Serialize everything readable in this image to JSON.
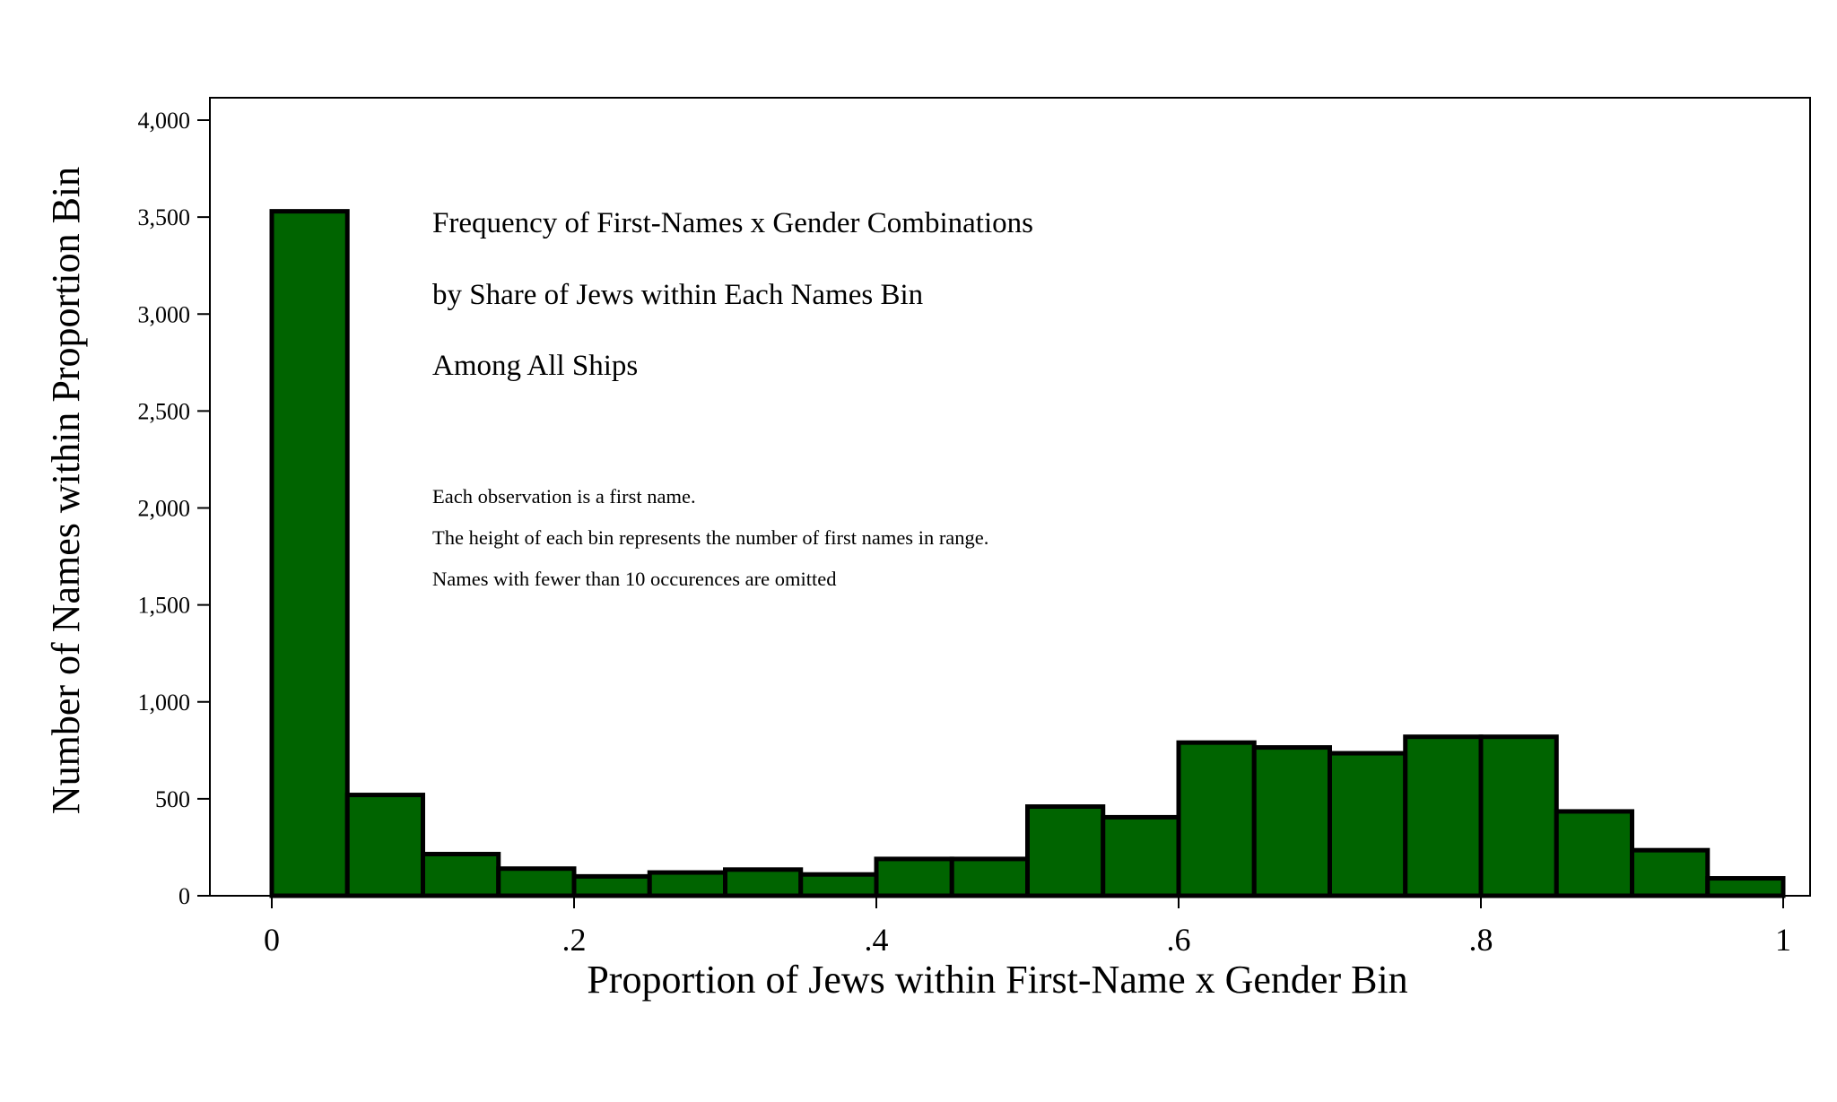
{
  "chart_data": {
    "type": "bar",
    "subtype": "histogram",
    "bin_edges": [
      0,
      0.05,
      0.1,
      0.15,
      0.2,
      0.25,
      0.3,
      0.35,
      0.4,
      0.45,
      0.5,
      0.55,
      0.6,
      0.65,
      0.7,
      0.75,
      0.8,
      0.85,
      0.9,
      0.95,
      1.0
    ],
    "values": [
      3530,
      520,
      215,
      140,
      100,
      120,
      135,
      110,
      190,
      190,
      460,
      405,
      790,
      765,
      735,
      820,
      820,
      435,
      235,
      90
    ],
    "xlabel": "Proportion of Jews within First-Name x Gender Bin",
    "ylabel": "Number of Names within Proportion Bin",
    "xlim": [
      0,
      1
    ],
    "ylim": [
      0,
      4000
    ],
    "x_ticks": [
      {
        "value": 0,
        "label": "0"
      },
      {
        "value": 0.2,
        "label": ".2"
      },
      {
        "value": 0.4,
        "label": ".4"
      },
      {
        "value": 0.6,
        "label": ".6"
      },
      {
        "value": 0.8,
        "label": ".8"
      },
      {
        "value": 1,
        "label": "1"
      }
    ],
    "y_ticks": [
      {
        "value": 0,
        "label": "0"
      },
      {
        "value": 500,
        "label": "500"
      },
      {
        "value": 1000,
        "label": "1,000"
      },
      {
        "value": 1500,
        "label": "1,500"
      },
      {
        "value": 2000,
        "label": "2,000"
      },
      {
        "value": 2500,
        "label": "2,500"
      },
      {
        "value": 3000,
        "label": "3,000"
      },
      {
        "value": 3500,
        "label": "3,500"
      },
      {
        "value": 4000,
        "label": "4,000"
      }
    ],
    "grid": false,
    "bar_color": "#006400",
    "bar_edge_color": "#000000",
    "annotation_title": [
      "Frequency of First-Names x Gender Combinations",
      "by Share of Jews within Each Names Bin",
      "Among All Ships"
    ],
    "annotation_notes": [
      "Each observation is a first name.",
      "The height of each bin represents the number of first names in range.",
      "Names with fewer than 10 occurences are omitted"
    ]
  }
}
